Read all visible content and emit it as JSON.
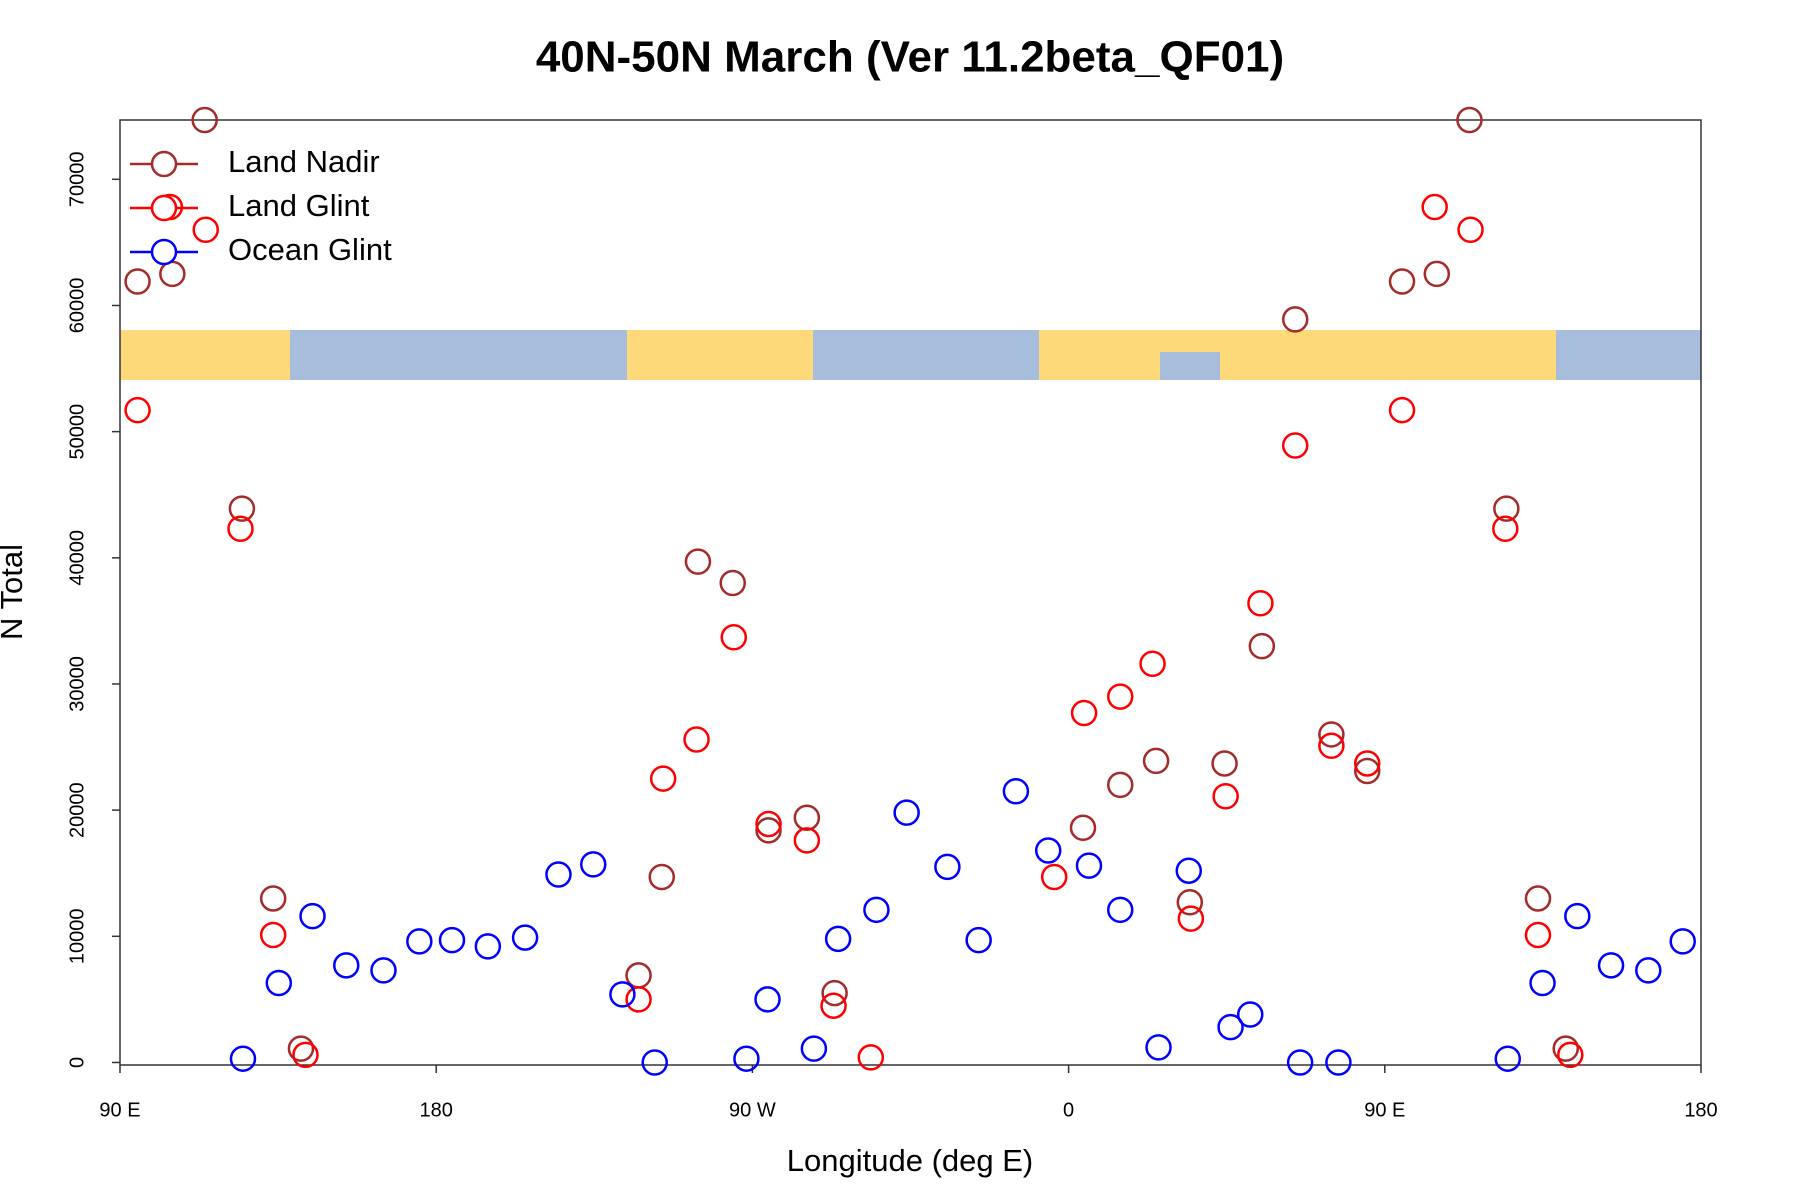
{
  "chart_data": {
    "type": "scatter",
    "title": "40N-50N March (Ver 11.2beta_QF01)",
    "x_label": "Longitude (deg E)",
    "y_label": "N Total",
    "xlim": [
      90,
      540
    ],
    "ylim": [
      -200,
      74700
    ],
    "xticks": [
      {
        "value": 90,
        "label": "90 E"
      },
      {
        "value": 180,
        "label": "180"
      },
      {
        "value": 270,
        "label": "90 W"
      },
      {
        "value": 360,
        "label": "0"
      },
      {
        "value": 450,
        "label": "90 E"
      },
      {
        "value": 540,
        "label": "180"
      }
    ],
    "yticks": [
      0,
      10000,
      20000,
      30000,
      40000,
      50000,
      60000,
      70000
    ],
    "legend": "top-left",
    "series": [
      {
        "name": "Land Nadir",
        "color": "#a52a2a",
        "x": [
          95,
          104.9,
          114.1,
          124.7,
          133.6,
          141.5,
          237.6,
          244.2,
          254.5,
          264.4,
          274.6,
          285.5,
          293.4,
          364.1,
          374.7,
          384.9,
          394.5,
          404.4,
          415.0,
          424.5,
          434.8,
          445.0,
          454.9,
          464.8,
          474.1,
          484.6,
          493.6,
          501.5
        ],
        "values": [
          61900,
          62500,
          74700,
          43900,
          13000,
          1100,
          6900,
          14700,
          39700,
          38000,
          18400,
          19400,
          5500,
          18600,
          22000,
          23900,
          12700,
          23700,
          33000,
          58900,
          26000,
          23100,
          61900,
          62500,
          74700,
          43900,
          13000,
          1100
        ]
      },
      {
        "name": "Land Glint",
        "color": "#ff0000",
        "x": [
          95,
          104.2,
          114.4,
          124.3,
          133.6,
          142.8,
          237.6,
          244.6,
          254.1,
          264.7,
          274.6,
          285.5,
          293.1,
          303.7,
          355.9,
          364.4,
          374.7,
          383.9,
          394.8,
          404.7,
          414.6,
          424.5,
          434.8,
          445.0,
          454.9,
          464.2,
          474.4,
          484.3,
          493.6,
          502.8
        ],
        "values": [
          51700,
          67800,
          66000,
          42300,
          10100,
          600,
          5000,
          22500,
          25600,
          33700,
          18900,
          17600,
          4500,
          400,
          14700,
          27700,
          29000,
          31600,
          11400,
          21100,
          36400,
          48900,
          25100,
          23700,
          51700,
          67800,
          66000,
          42300,
          10100,
          600
        ]
      },
      {
        "name": "Ocean Glint",
        "color": "#0000ff",
        "x": [
          125.0,
          135.2,
          144.8,
          154.4,
          165.0,
          175.2,
          184.5,
          194.7,
          205.3,
          214.8,
          224.7,
          233.0,
          242.2,
          268.3,
          274.3,
          287.5,
          294.4,
          305.3,
          313.9,
          325.5,
          334.4,
          345.0,
          354.2,
          365.8,
          374.7,
          385.6,
          394.2,
          406.1,
          411.7,
          425.9,
          436.8,
          485.0,
          494.9,
          504.8,
          514.4,
          525.0,
          534.8
        ],
        "values": [
          300,
          6300,
          11600,
          7700,
          7300,
          9600,
          9700,
          9200,
          9900,
          14900,
          15700,
          5400,
          0,
          300,
          5000,
          1100,
          9800,
          12100,
          19800,
          15500,
          9700,
          21500,
          16800,
          15600,
          12100,
          1200,
          15200,
          2800,
          3800,
          0,
          0,
          300,
          6300,
          11600,
          7700,
          7300,
          9600
        ]
      }
    ]
  }
}
